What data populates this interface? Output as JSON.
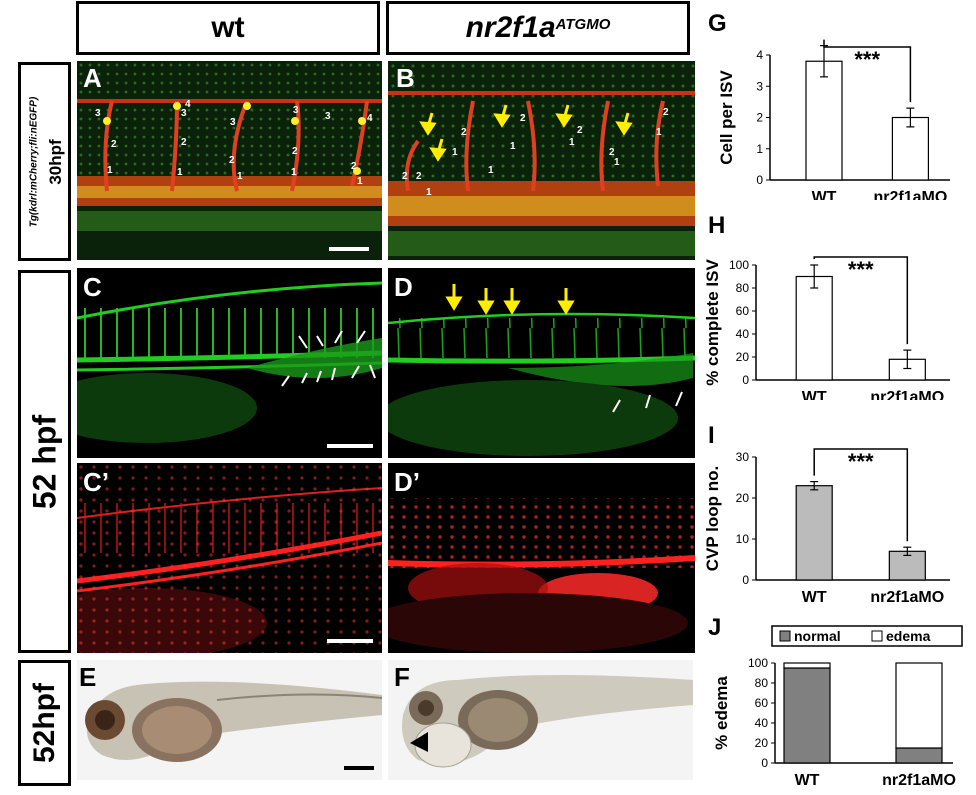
{
  "columns": {
    "wt": "wt",
    "mutant_base": "nr2f1a",
    "mutant_sup": "ATGMO"
  },
  "rows": {
    "row1_line1": "Tg(kdrl:mCherry;fli:nEGFP)",
    "row1_line2": "30hpf",
    "row2": "52 hpf",
    "row3": "52hpf"
  },
  "panel_labels": {
    "A": "A",
    "B": "B",
    "C": "C",
    "D": "D",
    "C2": "C’",
    "D2": "D’",
    "E": "E",
    "F": "F"
  },
  "isv_numbers_A": [
    "3",
    "2",
    "1",
    "3",
    "4",
    "2",
    "1",
    "3",
    "2",
    "1",
    "3",
    "2",
    "1",
    "3",
    "4",
    "2",
    "1"
  ],
  "isv_numbers_B": [
    "2",
    "1",
    "2",
    "1",
    "2",
    "1",
    "2",
    "1",
    "2",
    "1",
    "2",
    "1",
    "2",
    "1"
  ],
  "colors": {
    "green": "#22cc22",
    "red": "#ff2020",
    "yellow": "#ffee00",
    "gray_bar": "#bbbbbb",
    "dark_bar": "#808080"
  },
  "chart_data": [
    {
      "id": "G",
      "label": "G",
      "type": "bar",
      "categories": [
        "WT",
        "nr2f1aMO"
      ],
      "values": [
        3.8,
        2.0
      ],
      "errors": [
        0.5,
        0.3
      ],
      "ylabel": "Cell per ISV",
      "ylim": [
        0,
        4
      ],
      "yticks": [
        "0",
        "1",
        "2",
        "3",
        "4"
      ],
      "significance": "***",
      "bar_color": "#ffffff"
    },
    {
      "id": "H",
      "label": "H",
      "type": "bar",
      "categories": [
        "WT",
        "nr2f1aMO"
      ],
      "values": [
        90,
        18
      ],
      "errors": [
        10,
        8
      ],
      "ylabel": "% complete ISV",
      "ylim": [
        0,
        100
      ],
      "yticks": [
        "0",
        "20",
        "40",
        "60",
        "80",
        "100"
      ],
      "significance": "***",
      "bar_color": "#ffffff"
    },
    {
      "id": "I",
      "label": "I",
      "type": "bar",
      "categories": [
        "WT",
        "nr2f1aMO"
      ],
      "values": [
        23,
        7
      ],
      "errors": [
        1,
        1
      ],
      "ylabel": "CVP loop no.",
      "ylim": [
        0,
        30
      ],
      "yticks": [
        "0",
        "10",
        "20",
        "30"
      ],
      "significance": "***",
      "bar_color": "#bbbbbb"
    },
    {
      "id": "J",
      "label": "J",
      "type": "stacked-bar",
      "categories": [
        "WT",
        "nr2f1aMO"
      ],
      "series": [
        {
          "name": "normal",
          "values": [
            95,
            15
          ],
          "color": "#808080"
        },
        {
          "name": "edema",
          "values": [
            5,
            85
          ],
          "color": "#ffffff"
        }
      ],
      "ylabel": "% edema",
      "ylim": [
        0,
        100
      ],
      "yticks": [
        "0",
        "20",
        "40",
        "60",
        "80",
        "100"
      ]
    }
  ]
}
